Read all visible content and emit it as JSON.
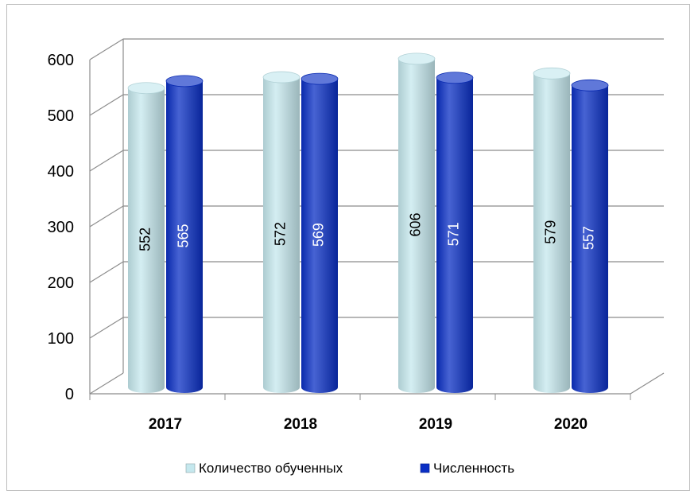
{
  "chart_data": {
    "type": "bar",
    "style": "3d-cylinder",
    "categories": [
      "2017",
      "2018",
      "2019",
      "2020"
    ],
    "series": [
      {
        "name": "Количество обученных",
        "values": [
          552,
          572,
          606,
          579
        ],
        "color": "#c5e8ee",
        "label_color": "#000000"
      },
      {
        "name": "Численность",
        "values": [
          565,
          569,
          571,
          557
        ],
        "color": "#0a2fc4",
        "label_color": "#ffffff"
      }
    ],
    "yticks": [
      "0",
      "100",
      "200",
      "300",
      "400",
      "500",
      "600"
    ],
    "ylim": [
      0,
      600
    ],
    "grid": true,
    "legend_position": "bottom"
  }
}
